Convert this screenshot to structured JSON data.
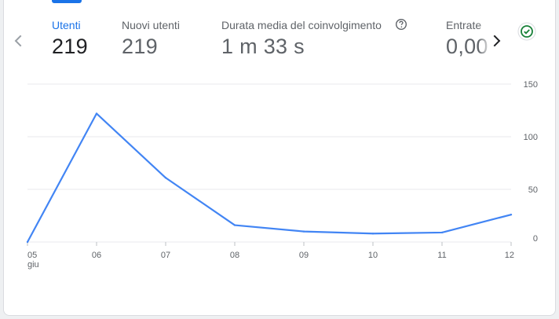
{
  "metrics": [
    {
      "label": "Utenti",
      "value": "219",
      "active": true
    },
    {
      "label": "Nuovi utenti",
      "value": "219",
      "active": false
    },
    {
      "label": "Durata media del coinvolgimento",
      "value": "1 m 33 s",
      "active": false,
      "has_help": true
    },
    {
      "label": "Entrate",
      "value": "0,00",
      "active": false
    }
  ],
  "icons": {
    "prev": "chevron-left-icon",
    "next": "chevron-right-icon",
    "help": "help-circle-icon",
    "status": "check-circle-icon"
  },
  "colors": {
    "accent": "#1a73e8",
    "line": "#4285f4",
    "status_green": "#188038",
    "grid": "#e8eaed"
  },
  "chart_data": {
    "type": "line",
    "x": [
      "05",
      "06",
      "07",
      "08",
      "09",
      "10",
      "11",
      "12"
    ],
    "x_sublabel": "giu",
    "series": [
      {
        "values": [
          0,
          122,
          61,
          16,
          10,
          8,
          9,
          26
        ]
      }
    ],
    "ylim": [
      0,
      150
    ],
    "yticks": [
      0,
      50,
      100,
      150
    ],
    "y_axis_side": "right",
    "grid": true,
    "legend": "none"
  }
}
